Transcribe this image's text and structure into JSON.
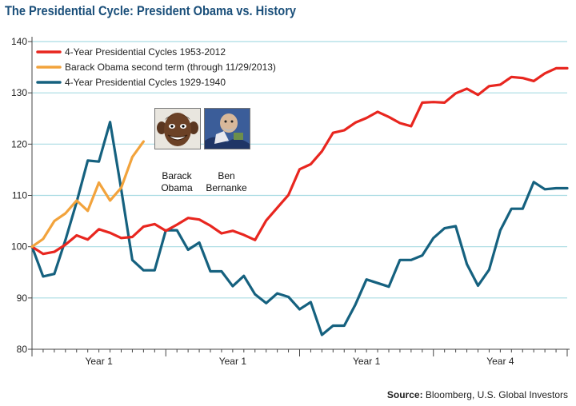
{
  "title": "The Presidential Cycle: President Obama vs. History",
  "source": {
    "label": "Source:",
    "text": "Bloomberg, U.S. Global Investors"
  },
  "portraits": [
    {
      "caption_line1": "Barack",
      "caption_line2": "Obama",
      "icon": "obama-caricature-icon"
    },
    {
      "caption_line1": "Ben",
      "caption_line2": "Bernanke",
      "icon": "bernanke-caricature-icon"
    }
  ],
  "colors": {
    "red": "#e8261f",
    "orange": "#f2a33c",
    "blue": "#15617f",
    "grid": "#a9dce3",
    "axis": "#444444"
  },
  "chart_data": {
    "type": "line",
    "title": "The Presidential Cycle: President Obama vs. History",
    "xlabel": "",
    "ylabel": "",
    "ylim": [
      80,
      140
    ],
    "yticks": [
      80,
      90,
      100,
      110,
      120,
      130,
      140
    ],
    "xlim": [
      0,
      48
    ],
    "x_period_labels": [
      "Year 1",
      "Year 1",
      "Year 1",
      "Year 4"
    ],
    "legend_position": "top-left",
    "series": [
      {
        "name": "4-Year Presidential Cycles 1953-2012",
        "color": "#e8261f",
        "x": [
          0,
          1,
          2,
          3,
          4,
          5,
          6,
          7,
          8,
          9,
          10,
          11,
          12,
          13,
          14,
          15,
          16,
          17,
          18,
          19,
          20,
          21,
          22,
          23,
          24,
          25,
          26,
          27,
          28,
          29,
          30,
          31,
          32,
          33,
          34,
          35,
          36,
          37,
          38,
          39,
          40,
          41,
          42,
          43,
          44,
          45,
          46,
          47,
          48
        ],
        "values": [
          100,
          98.6,
          99,
          100.4,
          102.2,
          101.4,
          103.4,
          102.7,
          101.7,
          101.9,
          103.9,
          104.4,
          103.1,
          104.3,
          105.6,
          105.3,
          104.1,
          102.6,
          103.1,
          102.3,
          101.3,
          105.1,
          107.6,
          110.1,
          115.1,
          116.1,
          118.6,
          122.2,
          122.7,
          124.2,
          125.1,
          126.3,
          125.3,
          124.1,
          123.5,
          128.1,
          128.2,
          128.1,
          129.9,
          130.8,
          129.6,
          131.3,
          131.6,
          133.1,
          132.9,
          132.3,
          133.8,
          134.8,
          134.8
        ]
      },
      {
        "name": "Barack Obama second term (through 11/29/2013)",
        "color": "#f2a33c",
        "x": [
          0,
          1,
          2,
          3,
          4,
          5,
          6,
          7,
          8,
          9,
          10
        ],
        "values": [
          100,
          101.5,
          105,
          106.5,
          109,
          107,
          112.5,
          109,
          111.5,
          117.5,
          120.5
        ]
      },
      {
        "name": "4-Year Presidential Cycles 1929-1940",
        "color": "#15617f",
        "x": [
          0,
          1,
          2,
          3,
          4,
          5,
          6,
          7,
          8,
          9,
          10,
          11,
          12,
          13,
          14,
          15,
          16,
          17,
          18,
          19,
          20,
          21,
          22,
          23,
          24,
          25,
          26,
          27,
          28,
          29,
          30,
          31,
          32,
          33,
          34,
          35,
          36,
          37,
          38,
          39,
          40,
          41,
          42,
          43,
          44,
          45,
          46,
          47,
          48
        ],
        "values": [
          100,
          94.2,
          94.7,
          101.3,
          108.7,
          116.8,
          116.6,
          124.3,
          111.2,
          97.4,
          95.4,
          95.4,
          103.2,
          103.2,
          99.4,
          100.8,
          95.2,
          95.2,
          92.3,
          94.3,
          90.7,
          89,
          90.9,
          90.2,
          87.8,
          89.2,
          82.8,
          84.6,
          84.6,
          88.7,
          93.6,
          92.9,
          92.2,
          97.4,
          97.4,
          98.3,
          101.7,
          103.6,
          104,
          96.6,
          92.4,
          95.5,
          103.2,
          107.4,
          107.4,
          112.6,
          111.2,
          111.4,
          111.4
        ]
      }
    ]
  }
}
